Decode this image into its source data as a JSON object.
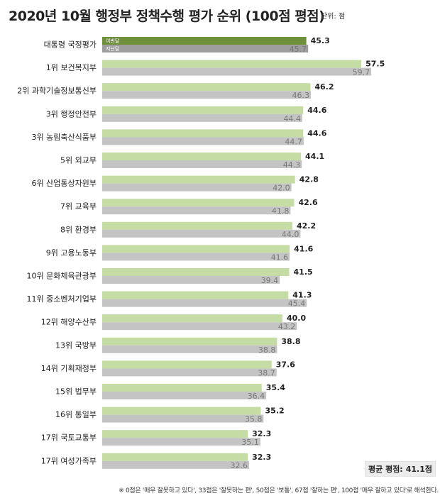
{
  "title": "2020년 10월 행정부 정책수행 평가 순위 (100점 평점)",
  "unit_label": "단위: 점",
  "average": {
    "label": "평균 평점:",
    "value": "41.1점"
  },
  "footnote": "※ 0점은 '매우 잘못하고 있다', 33점은 '잘못하는 편', 50점은 '보통', 67점 '잘하는 편', 100점 '매우 잘하고 있다'로 해석한다.",
  "colors": {
    "highlight_current": "#6e8f3c",
    "highlight_previous": "#9e9e9e",
    "current": "#c5dca4",
    "previous": "#c4c4c4"
  },
  "chart_data": {
    "type": "bar",
    "orientation": "horizontal",
    "title": "2020년 10월 행정부 정책수행 평가 순위 (100점 평점)",
    "xlim": [
      0,
      100
    ],
    "grid": false,
    "legend": "inside-first-bar",
    "categories": [
      "대통령 국정평가",
      "1위 보건복지부",
      "2위 과학기술정보통신부",
      "3위 행정안전부",
      "3위 농림축산식품부",
      "5위 외교부",
      "6위 산업통상자원부",
      "7위 교육부",
      "8위 환경부",
      "9위 고용노동부",
      "10위 문화체육관광부",
      "11위 중소벤처기업부",
      "12위 해양수산부",
      "13위 국방부",
      "14위 기획재정부",
      "15위 법무부",
      "16위 통일부",
      "17위 국토교통부",
      "17위 여성가족부"
    ],
    "series": [
      {
        "name": "이번달",
        "values": [
          45.3,
          57.5,
          46.2,
          44.6,
          44.6,
          44.1,
          42.8,
          42.6,
          42.2,
          41.6,
          41.5,
          41.3,
          40.0,
          38.8,
          37.6,
          35.4,
          35.2,
          32.3,
          32.3
        ],
        "labels": [
          "45.3",
          "57.5",
          "46.2",
          "44.6",
          "44.6",
          "44.1",
          "42.8",
          "42.6",
          "42.2",
          "41.6",
          "41.5",
          "41.3",
          "40.0",
          "38.8",
          "37.6",
          "35.4",
          "35.2",
          "32.3",
          "32.3"
        ]
      },
      {
        "name": "지난달",
        "values": [
          45.7,
          59.7,
          46.3,
          44.4,
          44.7,
          44.3,
          42.0,
          41.8,
          44.0,
          41.6,
          39.4,
          45.4,
          43.2,
          38.8,
          38.7,
          36.4,
          35.8,
          35.1,
          32.6
        ],
        "labels": [
          "45.7",
          "59.7",
          "46.3",
          "44.4",
          "44.7",
          "44.3",
          "42.0",
          "41.8",
          "44.0",
          "41.6",
          "39.4",
          "45.4",
          "43.2",
          "38.8",
          "38.7",
          "36.4",
          "35.8",
          "35.1",
          "32.6"
        ]
      }
    ]
  }
}
